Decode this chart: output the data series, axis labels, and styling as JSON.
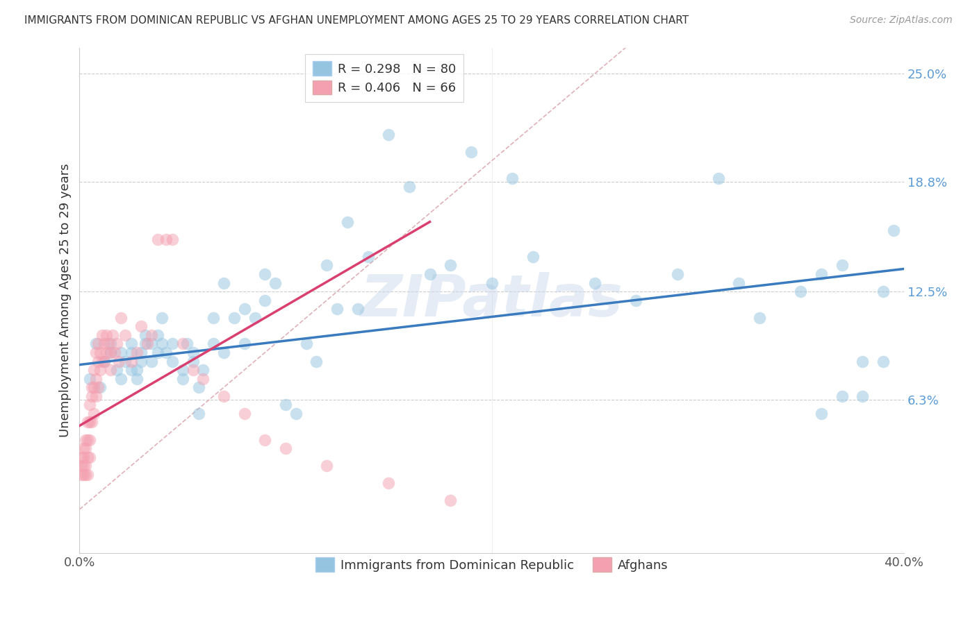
{
  "title": "IMMIGRANTS FROM DOMINICAN REPUBLIC VS AFGHAN UNEMPLOYMENT AMONG AGES 25 TO 29 YEARS CORRELATION CHART",
  "source": "Source: ZipAtlas.com",
  "ylabel_label": "Unemployment Among Ages 25 to 29 years",
  "xlim": [
    0.0,
    0.4
  ],
  "ylim": [
    -0.025,
    0.265
  ],
  "yticks": [
    0.063,
    0.125,
    0.188,
    0.25
  ],
  "ytick_labels_right": [
    "6.3%",
    "12.5%",
    "18.8%",
    "25.0%"
  ],
  "xticks": [
    0.0,
    0.08,
    0.16,
    0.24,
    0.32,
    0.4
  ],
  "xtick_labels": [
    "0.0%",
    "",
    "",
    "",
    "",
    "40.0%"
  ],
  "grid_color": "#cccccc",
  "watermark": "ZIPatlas",
  "blue_color": "#94c4e0",
  "pink_color": "#f4a0b0",
  "blue_line_color": "#3a7bbf",
  "pink_line_color": "#d94070",
  "diag_line_color": "#cccccc",
  "blue_scatter_x": [
    0.005,
    0.008,
    0.01,
    0.012,
    0.015,
    0.015,
    0.018,
    0.02,
    0.02,
    0.022,
    0.025,
    0.025,
    0.025,
    0.028,
    0.028,
    0.03,
    0.03,
    0.032,
    0.032,
    0.035,
    0.035,
    0.038,
    0.038,
    0.04,
    0.04,
    0.042,
    0.045,
    0.045,
    0.05,
    0.05,
    0.052,
    0.055,
    0.055,
    0.058,
    0.058,
    0.06,
    0.065,
    0.065,
    0.07,
    0.07,
    0.075,
    0.08,
    0.08,
    0.085,
    0.09,
    0.09,
    0.095,
    0.1,
    0.105,
    0.11,
    0.115,
    0.12,
    0.125,
    0.13,
    0.135,
    0.14,
    0.15,
    0.16,
    0.17,
    0.18,
    0.19,
    0.2,
    0.21,
    0.22,
    0.25,
    0.27,
    0.29,
    0.31,
    0.32,
    0.33,
    0.35,
    0.36,
    0.37,
    0.38,
    0.39,
    0.395,
    0.38,
    0.39,
    0.36,
    0.37
  ],
  "blue_scatter_y": [
    0.075,
    0.095,
    0.07,
    0.085,
    0.09,
    0.095,
    0.08,
    0.075,
    0.09,
    0.085,
    0.08,
    0.09,
    0.095,
    0.08,
    0.075,
    0.085,
    0.09,
    0.095,
    0.1,
    0.085,
    0.095,
    0.09,
    0.1,
    0.095,
    0.11,
    0.09,
    0.085,
    0.095,
    0.08,
    0.075,
    0.095,
    0.085,
    0.09,
    0.07,
    0.055,
    0.08,
    0.11,
    0.095,
    0.09,
    0.13,
    0.11,
    0.115,
    0.095,
    0.11,
    0.12,
    0.135,
    0.13,
    0.06,
    0.055,
    0.095,
    0.085,
    0.14,
    0.115,
    0.165,
    0.115,
    0.145,
    0.215,
    0.185,
    0.135,
    0.14,
    0.205,
    0.13,
    0.19,
    0.145,
    0.13,
    0.12,
    0.135,
    0.19,
    0.13,
    0.11,
    0.125,
    0.135,
    0.14,
    0.085,
    0.125,
    0.16,
    0.065,
    0.085,
    0.055,
    0.065
  ],
  "pink_scatter_x": [
    0.001,
    0.001,
    0.001,
    0.002,
    0.002,
    0.002,
    0.002,
    0.003,
    0.003,
    0.003,
    0.003,
    0.004,
    0.004,
    0.004,
    0.004,
    0.005,
    0.005,
    0.005,
    0.005,
    0.006,
    0.006,
    0.006,
    0.007,
    0.007,
    0.007,
    0.008,
    0.008,
    0.008,
    0.009,
    0.009,
    0.009,
    0.01,
    0.01,
    0.011,
    0.011,
    0.012,
    0.012,
    0.013,
    0.013,
    0.014,
    0.015,
    0.015,
    0.016,
    0.017,
    0.018,
    0.019,
    0.02,
    0.022,
    0.025,
    0.028,
    0.03,
    0.033,
    0.035,
    0.038,
    0.042,
    0.045,
    0.05,
    0.055,
    0.06,
    0.07,
    0.08,
    0.09,
    0.1,
    0.12,
    0.15,
    0.18
  ],
  "pink_scatter_y": [
    0.03,
    0.025,
    0.02,
    0.035,
    0.03,
    0.025,
    0.02,
    0.04,
    0.035,
    0.025,
    0.02,
    0.05,
    0.04,
    0.03,
    0.02,
    0.06,
    0.05,
    0.04,
    0.03,
    0.07,
    0.065,
    0.05,
    0.08,
    0.07,
    0.055,
    0.09,
    0.075,
    0.065,
    0.095,
    0.085,
    0.07,
    0.09,
    0.08,
    0.1,
    0.085,
    0.095,
    0.085,
    0.1,
    0.09,
    0.095,
    0.09,
    0.08,
    0.1,
    0.09,
    0.095,
    0.085,
    0.11,
    0.1,
    0.085,
    0.09,
    0.105,
    0.095,
    0.1,
    0.155,
    0.155,
    0.155,
    0.095,
    0.08,
    0.075,
    0.065,
    0.055,
    0.04,
    0.035,
    0.025,
    0.015,
    0.005
  ],
  "blue_line_x": [
    0.0,
    0.4
  ],
  "blue_line_y": [
    0.083,
    0.138
  ],
  "pink_line_x": [
    0.0,
    0.17
  ],
  "pink_line_y": [
    0.048,
    0.165
  ],
  "diag_line_x": [
    0.0,
    0.265
  ],
  "diag_line_y": [
    0.0,
    0.265
  ],
  "legend_blue_label": "R = 0.298   N = 80",
  "legend_pink_label": "R = 0.406   N = 66",
  "bottom_legend_blue": "Immigrants from Dominican Republic",
  "bottom_legend_pink": "Afghans"
}
